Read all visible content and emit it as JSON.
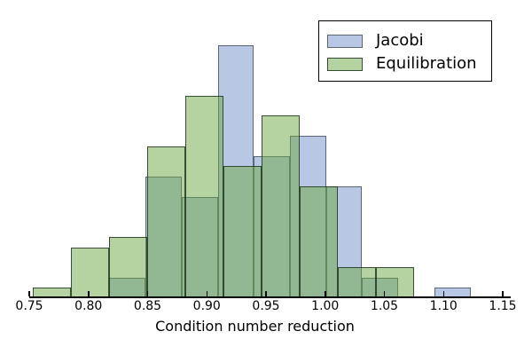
{
  "chart_data": {
    "type": "histogram",
    "title": "",
    "xlabel": "Condition number reduction",
    "ylabel": "",
    "xlim": [
      0.75,
      1.15
    ],
    "x_ticks": [
      "0.75",
      "0.80",
      "0.85",
      "0.90",
      "0.95",
      "1.00",
      "1.05",
      "1.10",
      "1.15"
    ],
    "y_axis_visible": false,
    "grid": false,
    "legend_position": "upper right",
    "series": [
      {
        "name": "Jacobi",
        "bin_start": 0.8177,
        "bin_width": 0.0305,
        "counts": [
          2,
          12,
          10,
          25,
          14,
          16,
          11,
          2,
          0,
          1
        ],
        "fill": "#b8c8e4",
        "edge": "#5a6575"
      },
      {
        "name": "Equilibration",
        "bin_start": 0.7528,
        "bin_width": 0.03225,
        "counts": [
          1,
          5,
          6,
          15,
          20,
          13,
          18,
          11,
          3,
          3
        ],
        "fill": "rgba(107,167,65,0.5)",
        "edge": "rgba(25,45,25,0.8)"
      }
    ]
  }
}
